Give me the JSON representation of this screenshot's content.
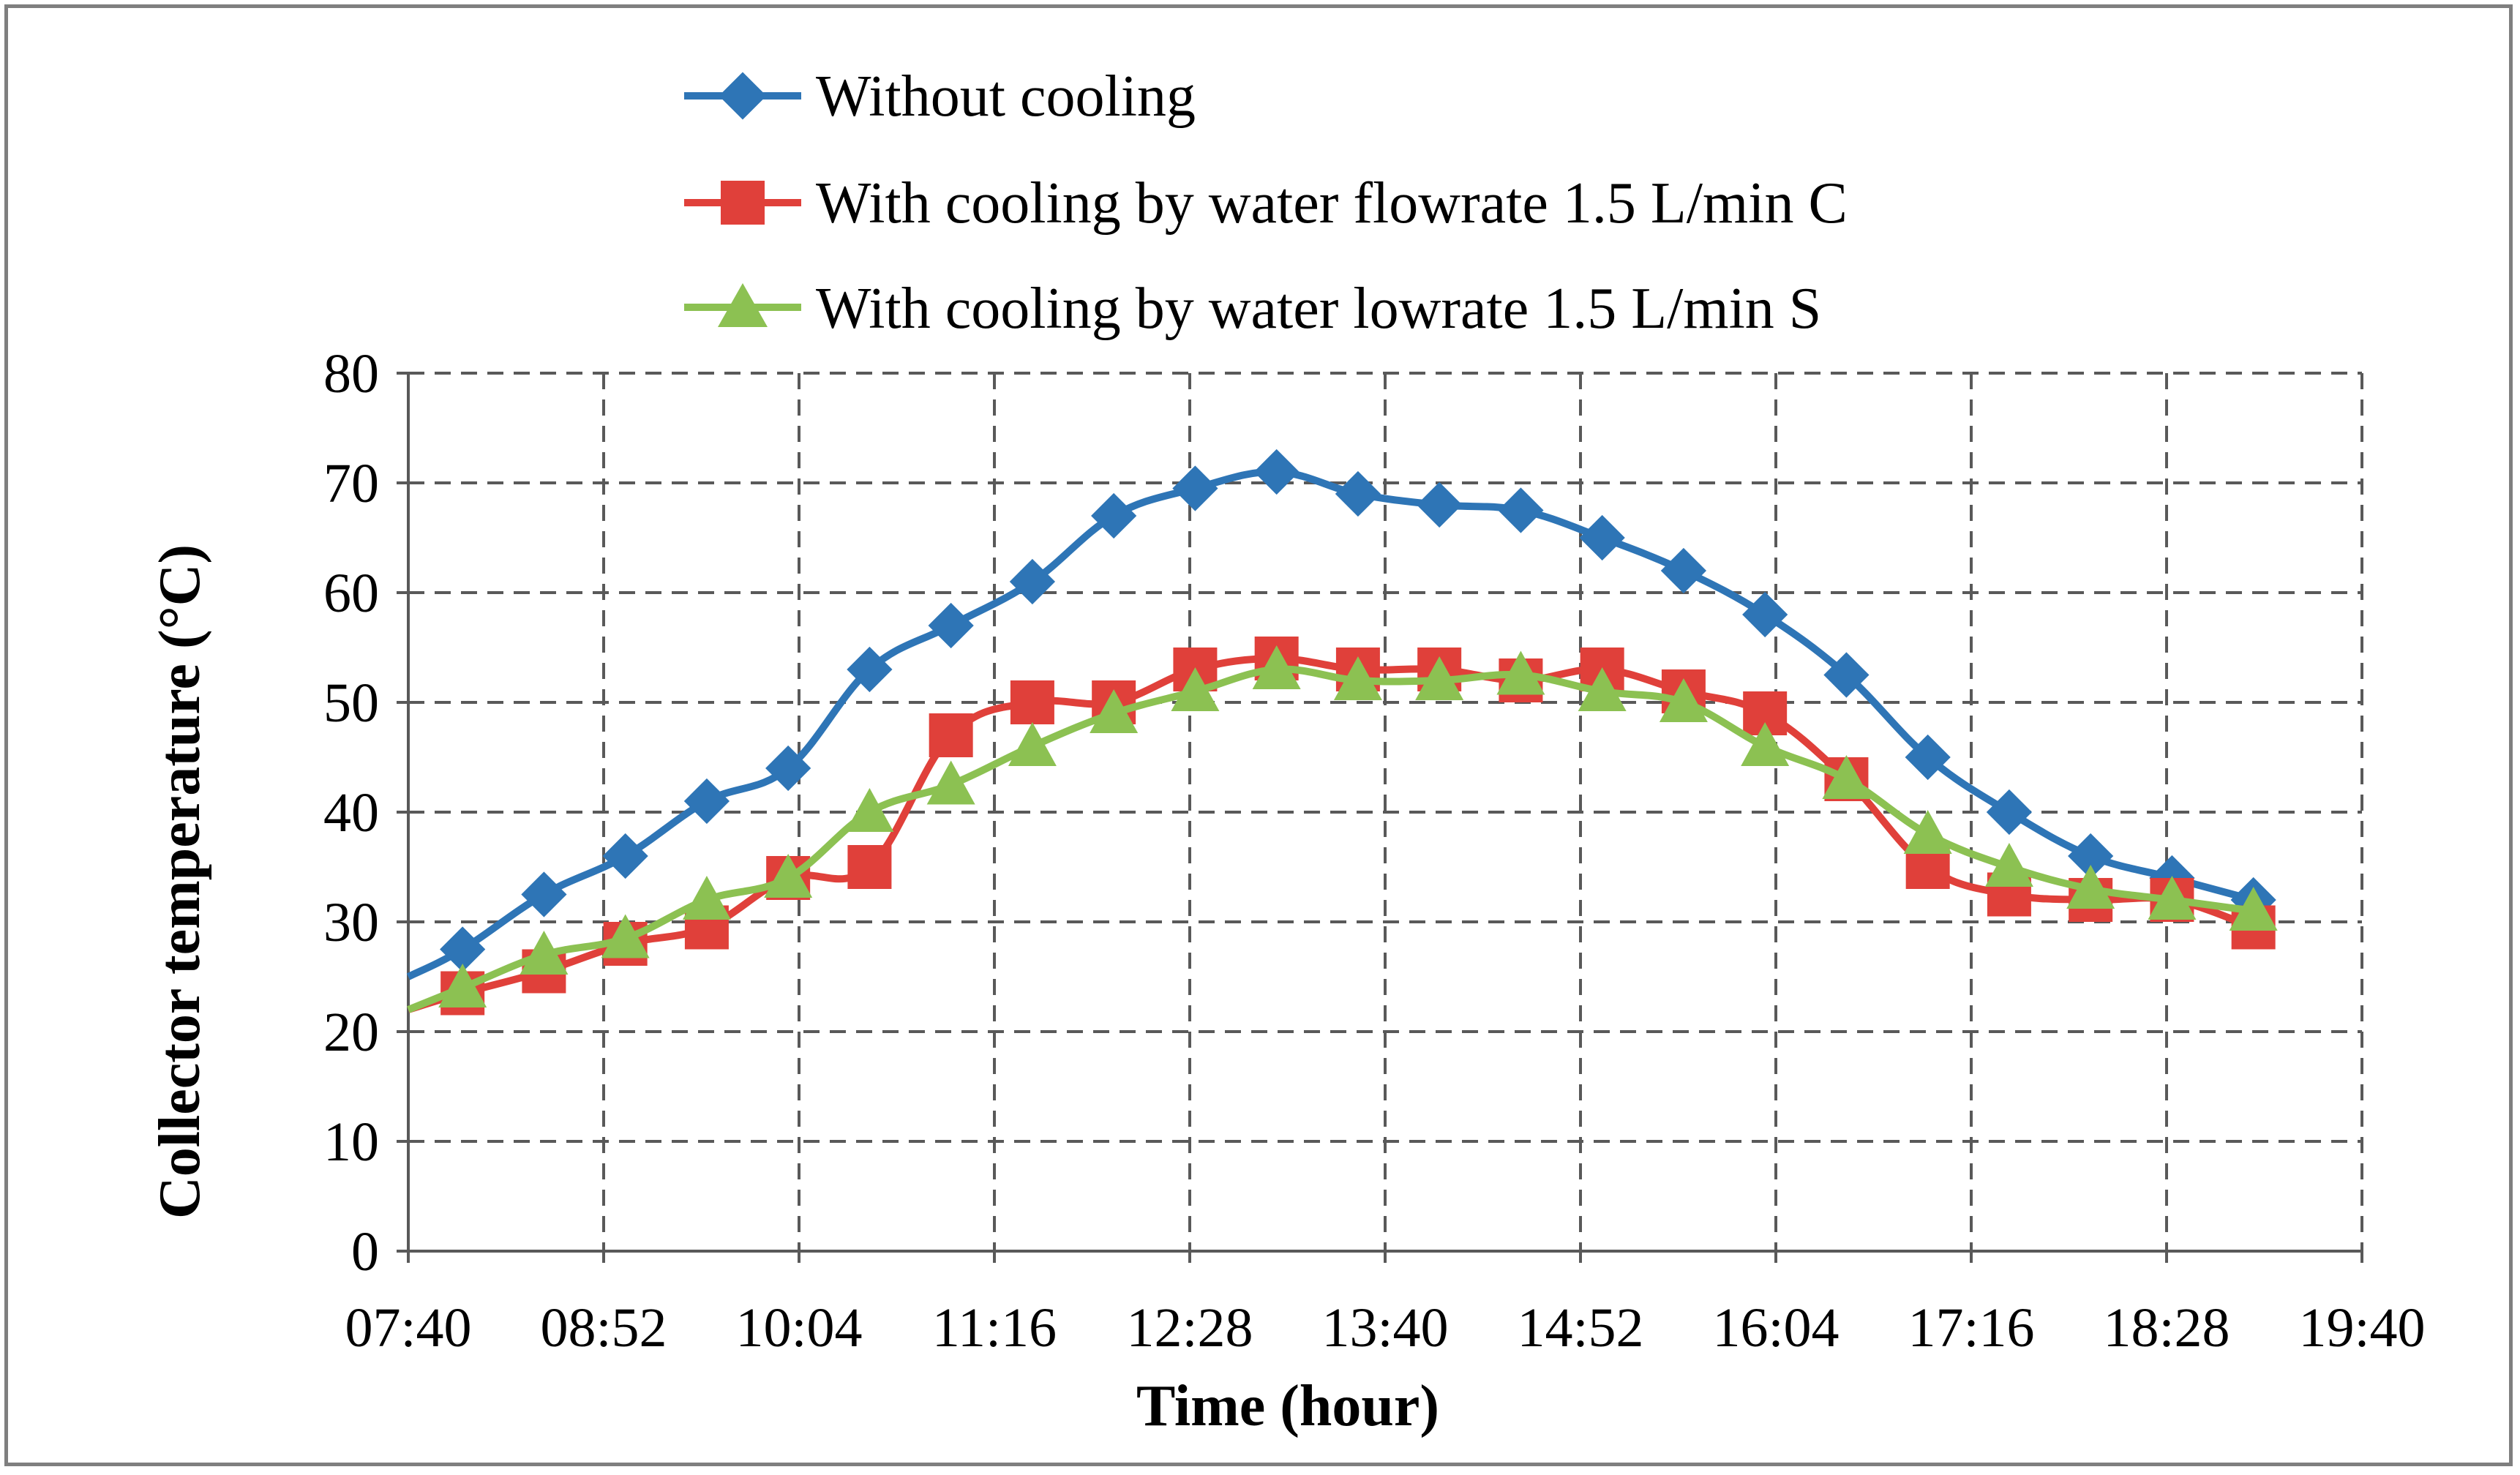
{
  "chart_data": {
    "type": "line",
    "title": "",
    "xlabel": "Time (hour)",
    "ylabel": "Collector temperature (°C)",
    "ylim": [
      0,
      80
    ],
    "y_ticks": [
      0,
      10,
      20,
      30,
      40,
      50,
      60,
      70,
      80
    ],
    "x_ticks": [
      "07:40",
      "08:52",
      "10:04",
      "11:16",
      "12:28",
      "13:40",
      "14:52",
      "16:04",
      "17:16",
      "18:28",
      "19:40"
    ],
    "xlim_minutes": [
      460,
      1180
    ],
    "grid": true,
    "legend_position": "top",
    "series": [
      {
        "name": "Without cooling",
        "color": "#2e75b6",
        "marker": "diamond",
        "leading_value": 25,
        "x": [
          "08:00",
          "08:30",
          "09:00",
          "09:30",
          "10:00",
          "10:30",
          "11:00",
          "11:30",
          "12:00",
          "12:30",
          "13:00",
          "13:30",
          "14:00",
          "14:30",
          "15:00",
          "15:30",
          "16:00",
          "16:30",
          "17:00",
          "17:30",
          "18:00",
          "18:30",
          "19:00"
        ],
        "values": [
          27.5,
          32.5,
          36,
          41,
          44,
          53,
          57,
          61,
          67,
          69.5,
          71,
          69,
          68,
          67.5,
          65,
          62,
          58,
          52.5,
          45,
          40,
          36,
          34,
          32
        ]
      },
      {
        "name": "With cooling by water flowrate 1.5 L/min C",
        "color": "#e0403a",
        "marker": "square",
        "leading_value": 22,
        "x": [
          "08:00",
          "08:30",
          "09:00",
          "09:30",
          "10:00",
          "10:30",
          "11:00",
          "11:30",
          "12:00",
          "12:30",
          "13:00",
          "13:30",
          "14:00",
          "14:30",
          "15:00",
          "15:30",
          "16:00",
          "16:30",
          "17:00",
          "17:30",
          "18:00",
          "18:30",
          "19:00"
        ],
        "values": [
          23.5,
          25.5,
          28,
          29.5,
          34,
          35,
          47,
          50,
          50,
          53,
          54,
          53,
          53,
          52,
          53,
          51,
          49,
          43,
          35,
          32.5,
          32,
          32,
          29.5
        ]
      },
      {
        "name": "With cooling by water lowrate 1.5 L/min S",
        "color": "#8cc152",
        "marker": "triangle",
        "leading_value": 22,
        "x": [
          "08:00",
          "08:30",
          "09:00",
          "09:30",
          "10:00",
          "10:30",
          "11:00",
          "11:30",
          "12:00",
          "12:30",
          "13:00",
          "13:30",
          "14:00",
          "14:30",
          "15:00",
          "15:30",
          "16:00",
          "16:30",
          "17:00",
          "17:30",
          "18:00",
          "18:30",
          "19:00"
        ],
        "values": [
          24,
          27,
          28.5,
          32,
          34,
          40,
          42.5,
          46,
          49,
          51,
          53,
          52,
          52,
          52.5,
          51,
          50,
          46,
          43,
          38,
          35,
          33,
          32,
          31
        ]
      }
    ]
  }
}
